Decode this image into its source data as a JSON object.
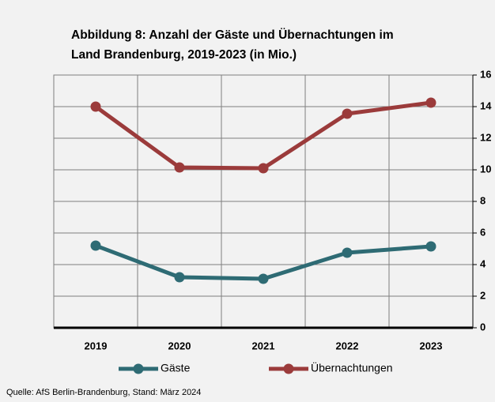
{
  "chart_data": {
    "type": "line",
    "title": "Abbildung 8: Anzahl der Gäste und Übernachtungen im",
    "subtitle": "Land Brandenburg, 2019-2023 (in Mio.)",
    "categories": [
      "2019",
      "2020",
      "2021",
      "2022",
      "2023"
    ],
    "series": [
      {
        "name": "Gäste",
        "color": "#2e6b74",
        "values": [
          5.2,
          3.2,
          3.1,
          4.75,
          5.15
        ]
      },
      {
        "name": "Übernachtungen",
        "color": "#9b3b3b",
        "values": [
          14.0,
          10.15,
          10.1,
          13.55,
          14.25
        ]
      }
    ],
    "ylim": [
      0,
      16
    ],
    "yticks": [
      0,
      2,
      4,
      6,
      8,
      10,
      12,
      14,
      16
    ],
    "grid": true,
    "source": "Quelle: AfS Berlin-Brandenburg, Stand: März 2024"
  }
}
